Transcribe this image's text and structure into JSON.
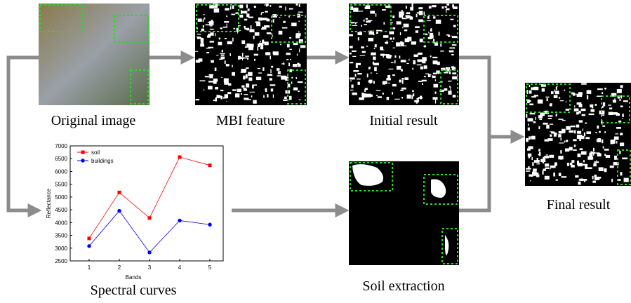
{
  "nodes": [
    {
      "label": "Original image"
    },
    {
      "label": "MBI feature"
    },
    {
      "label": "Initial result"
    },
    {
      "label": "Final result"
    },
    {
      "label": "Soil extraction"
    },
    {
      "label": "Spectral curves"
    }
  ],
  "chart_data": {
    "type": "line",
    "x_label": "Bands",
    "y_label": "Reflectance",
    "categories": [
      "1",
      "2",
      "3",
      "4",
      "5"
    ],
    "series": [
      {
        "name": "soil",
        "color": "#ff0000",
        "marker": "square",
        "values": [
          3380,
          5180,
          4180,
          6560,
          6240
        ]
      },
      {
        "name": "buildings",
        "color": "#0000ff",
        "marker": "circle",
        "values": [
          3080,
          4460,
          2830,
          4080,
          3920
        ]
      }
    ],
    "ylim": [
      2500,
      7000
    ],
    "yticks": [
      2500,
      3000,
      3500,
      4000,
      4500,
      5000,
      5500,
      6000,
      6500,
      7000
    ],
    "legend": "upper-left"
  }
}
